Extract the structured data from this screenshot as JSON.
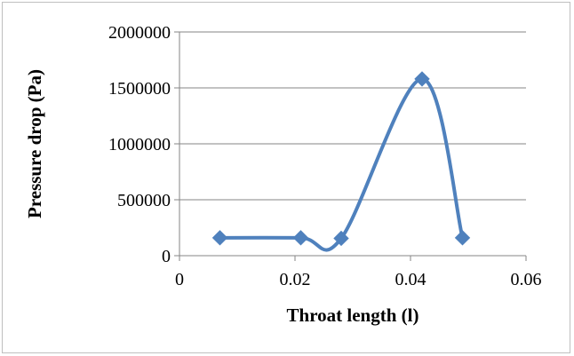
{
  "chart_data": {
    "type": "line",
    "title": "",
    "xlabel": "Throat length (l)",
    "ylabel": "Pressure drop (Pa)",
    "xlim": [
      0,
      0.06
    ],
    "ylim": [
      0,
      2000000
    ],
    "x_ticks": [
      0,
      0.02,
      0.04,
      0.06
    ],
    "y_ticks": [
      0,
      500000,
      1000000,
      1500000,
      2000000
    ],
    "x_tick_labels": [
      "0",
      "0.02",
      "0.04",
      "0.06"
    ],
    "y_tick_labels": [
      "0",
      "500000",
      "1000000",
      "1500000",
      "2000000"
    ],
    "grid": "horizontal",
    "legend": "none",
    "line_style": "smooth",
    "marker": "diamond",
    "series": [
      {
        "x": [
          0.007,
          0.021,
          0.028,
          0.042,
          0.049
        ],
        "y": [
          160000,
          160000,
          155000,
          1580000,
          160000
        ]
      }
    ],
    "colors": {
      "series": "#4f81bd",
      "grid": "#868686",
      "border": "#bfbfbf"
    }
  }
}
